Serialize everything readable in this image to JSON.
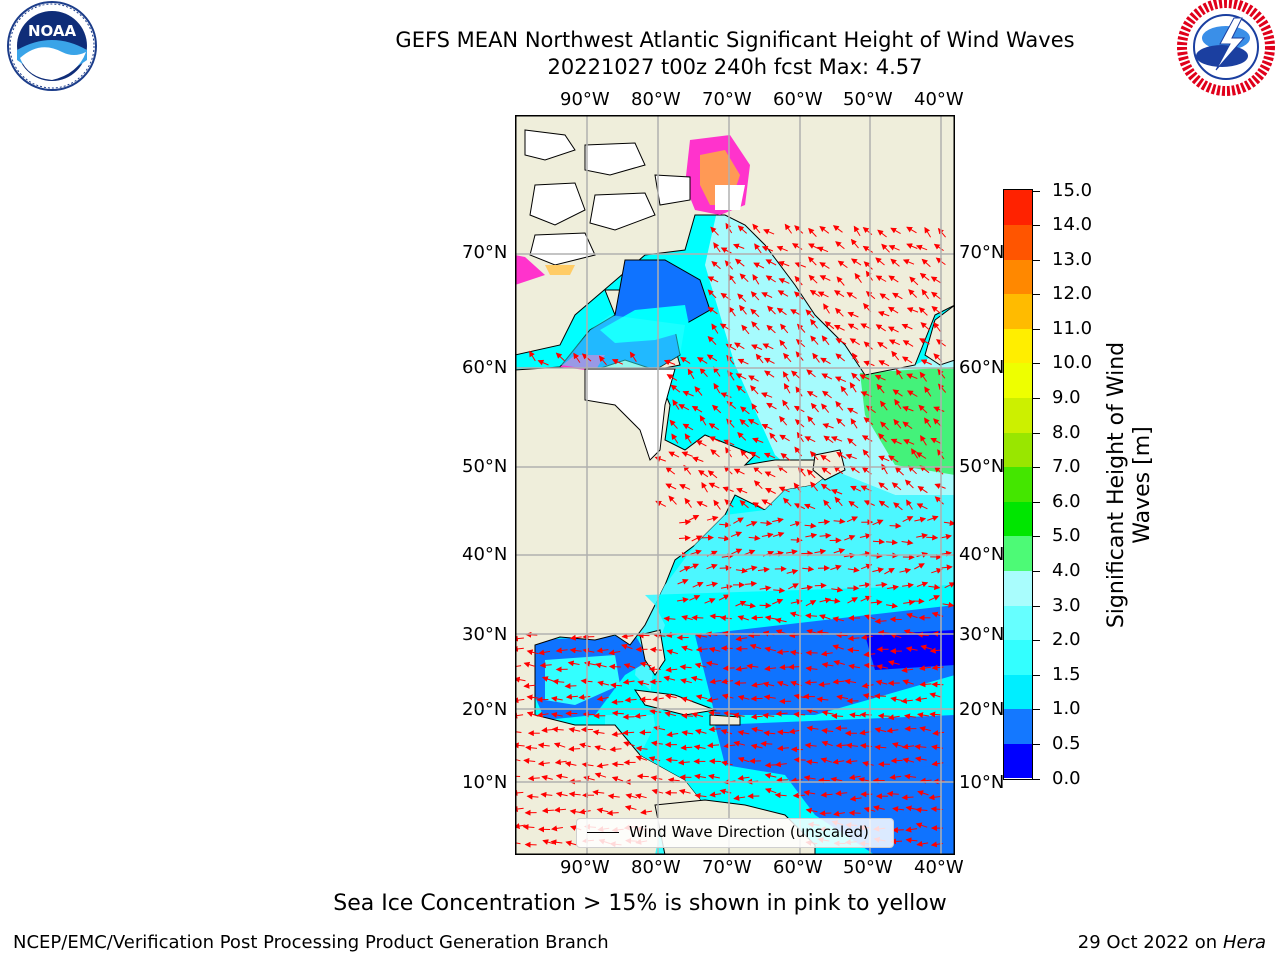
{
  "header": {
    "title_line1": "GEFS MEAN Northwest Atlantic Significant Height of Wind Waves",
    "title_line2": "20221027 t00z 240h fcst   Max: 4.57"
  },
  "logos": {
    "left": {
      "name": "noaa-logo",
      "text": "NOAA",
      "ring_text": "NATIONAL OCEANIC AND ATMOSPHERIC ADMINISTRATION · U.S. DEPARTMENT OF COMMERCE"
    },
    "right": {
      "name": "nws-logo",
      "ring_text": "NATIONAL WEATHER SERVICE"
    }
  },
  "map": {
    "lon_labels": [
      "90°W",
      "80°W",
      "70°W",
      "60°W",
      "50°W",
      "40°W"
    ],
    "lat_labels": [
      "70°N",
      "60°N",
      "50°N",
      "40°N",
      "30°N",
      "20°N",
      "10°N"
    ],
    "land_color": "#efeedb",
    "ocean_colors": {
      "dark_blue": "#0000ff",
      "blue": "#0f73ff",
      "cyan": "#00ffff",
      "light_cyan": "#4cf7ff",
      "pale_cyan": "#a6fbfd",
      "green": "#44f27a",
      "pink": "#ff33cc",
      "orange": "#ff9955"
    },
    "arrow_color": "#ff0000",
    "legend_text": "Wind Wave Direction (unscaled)"
  },
  "colorbar": {
    "label_line1": "Significant Height of Wind",
    "label_line2": "Waves [m]",
    "ticks": [
      "0.0",
      "0.5",
      "1.0",
      "1.5",
      "2.0",
      "3.0",
      "4.0",
      "5.0",
      "6.0",
      "7.0",
      "8.0",
      "9.0",
      "10.0",
      "11.0",
      "12.0",
      "13.0",
      "14.0",
      "15.0"
    ],
    "colors": [
      "#0000ff",
      "#1478ff",
      "#00eeff",
      "#33ffff",
      "#66ffff",
      "#a9fdfd",
      "#4dfa76",
      "#00e600",
      "#44e600",
      "#99e600",
      "#ccf000",
      "#eeff00",
      "#ffee00",
      "#ffbb00",
      "#ff8800",
      "#ff5500",
      "#ff2200",
      "#ff0000"
    ]
  },
  "footer": {
    "note": "Sea Ice Concentration > 15% is shown in pink to yellow",
    "left": "NCEP/EMC/Verification Post Processing Product Generation Branch",
    "right_prefix": "29 Oct 2022 on ",
    "right_italic": "Hera"
  }
}
